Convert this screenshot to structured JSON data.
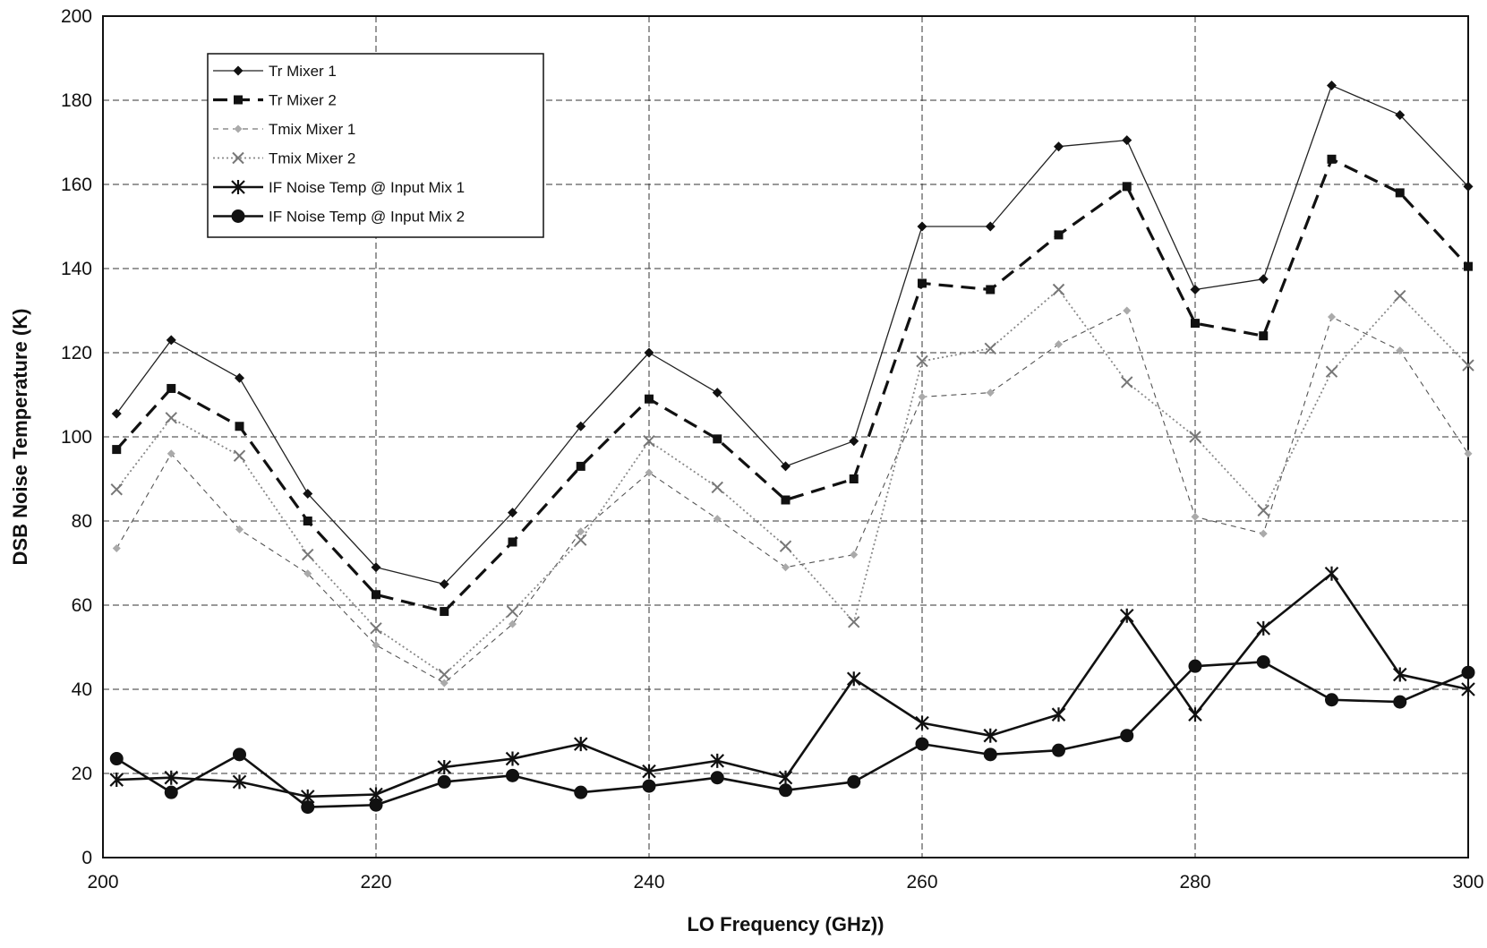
{
  "chart_data": {
    "type": "line",
    "xlabel": "LO Frequency (GHz))",
    "ylabel": "DSB Noise Temperature (K)",
    "xlim": [
      200,
      300
    ],
    "ylim": [
      0,
      200
    ],
    "xticks": [
      "200",
      "220",
      "240",
      "260",
      "280",
      "300"
    ],
    "yticks": [
      "0",
      "20",
      "40",
      "60",
      "80",
      "100",
      "120",
      "140",
      "160",
      "180",
      "200"
    ],
    "grid": true,
    "legend_position": "top-left",
    "x": [
      201,
      205,
      210,
      215,
      220,
      225,
      230,
      235,
      240,
      245,
      250,
      255,
      260,
      265,
      270,
      275,
      280,
      285,
      290,
      295,
      300
    ],
    "series": [
      {
        "name": "Tr Mixer 1",
        "style": "thin-solid",
        "marker": "diamond",
        "values": [
          105.5,
          123,
          114,
          86.5,
          69,
          65,
          82,
          102.5,
          120,
          110.5,
          93,
          99,
          150,
          150,
          169,
          170.5,
          135,
          137.5,
          183.5,
          176.5,
          159.5
        ]
      },
      {
        "name": "Tr Mixer 2",
        "style": "thick-dashed",
        "marker": "square",
        "values": [
          97,
          111.5,
          102.5,
          80,
          62.5,
          58.5,
          75,
          93,
          109,
          99.5,
          85,
          90,
          136.5,
          135,
          148,
          159.5,
          127,
          124,
          166,
          158,
          140.5
        ]
      },
      {
        "name": "Tmix Mixer 1",
        "style": "thin-dashed",
        "marker": "small-diamond",
        "values": [
          73.5,
          96,
          78,
          67.5,
          50.5,
          41.5,
          55.5,
          77.5,
          91.5,
          80.5,
          69,
          72,
          109.5,
          110.5,
          122,
          130,
          81,
          77,
          128.5,
          120.5,
          96
        ]
      },
      {
        "name": "Tmix Mixer 2",
        "style": "dotted",
        "marker": "x",
        "values": [
          87.5,
          104.5,
          95.5,
          72,
          54.5,
          43.5,
          58.5,
          75.5,
          99,
          88,
          74,
          56,
          118,
          121,
          135,
          113,
          100,
          82.5,
          115.5,
          133.5,
          117
        ]
      },
      {
        "name": "IF Noise Temp @ Input Mix 1",
        "style": "thick-solid",
        "marker": "asterisk",
        "values": [
          18.5,
          19,
          18,
          14.5,
          15,
          21.5,
          23.5,
          27,
          20.5,
          23,
          19,
          42.5,
          32,
          29,
          34,
          57.5,
          34,
          54.5,
          67.5,
          43.5,
          40
        ]
      },
      {
        "name": "IF Noise Temp @ Input Mix 2",
        "style": "thick-solid",
        "marker": "circle",
        "values": [
          23.5,
          15.5,
          24.5,
          12,
          12.5,
          18,
          19.5,
          15.5,
          17,
          19,
          16,
          18,
          27,
          24.5,
          25.5,
          29,
          45.5,
          46.5,
          37.5,
          37,
          44
        ]
      }
    ]
  }
}
